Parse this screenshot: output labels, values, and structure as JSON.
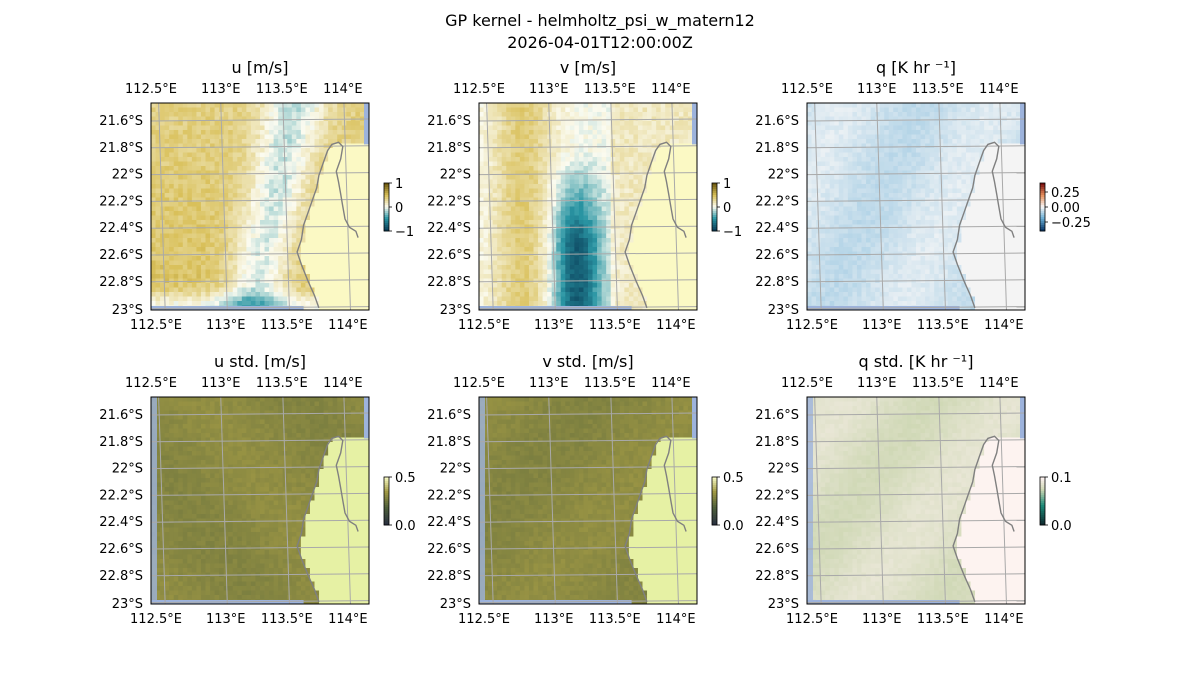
{
  "figure": {
    "title": "GP kernel - helmholtz_psi_w_matern12",
    "timestamp": "2026-04-01T12:00:00Z"
  },
  "chart_data": [
    {
      "type": "heatmap",
      "title": "u [m/s]",
      "variable": "u",
      "x_ticks": [
        "112.5°E",
        "113°E",
        "113.5°E",
        "114°E"
      ],
      "y_ticks": [
        "21.6°S",
        "21.8°S",
        "22°S",
        "22.2°S",
        "22.4°S",
        "22.6°S",
        "22.8°S",
        "23°S"
      ],
      "extent_lon": [
        112.49,
        114.23
      ],
      "extent_lat": [
        -23.0,
        -21.45
      ],
      "colorbar": {
        "ticks": [
          "1",
          "0",
          "−1"
        ],
        "range": [
          -1,
          1
        ],
        "colormap": "diverging teal-white-gold"
      },
      "grid": true
    },
    {
      "type": "heatmap",
      "title": "v [m/s]",
      "variable": "v",
      "x_ticks": [
        "112.5°E",
        "113°E",
        "113.5°E",
        "114°E"
      ],
      "y_ticks": [
        "21.6°S",
        "21.8°S",
        "22°S",
        "22.2°S",
        "22.4°S",
        "22.6°S",
        "22.8°S",
        "23°S"
      ],
      "extent_lon": [
        112.49,
        114.23
      ],
      "extent_lat": [
        -23.0,
        -21.45
      ],
      "colorbar": {
        "ticks": [
          "1",
          "0",
          "−1"
        ],
        "range": [
          -1,
          1
        ],
        "colormap": "diverging teal-white-gold"
      },
      "grid": true
    },
    {
      "type": "heatmap",
      "title": "q [K hr ⁻¹]",
      "variable": "q",
      "x_ticks": [
        "112.5°E",
        "113°E",
        "113.5°E",
        "114°E"
      ],
      "y_ticks": [
        "21.6°S",
        "21.8°S",
        "22°S",
        "22.2°S",
        "22.4°S",
        "22.6°S",
        "22.8°S",
        "23°S"
      ],
      "extent_lon": [
        112.49,
        114.23
      ],
      "extent_lat": [
        -23.0,
        -21.45
      ],
      "colorbar": {
        "ticks": [
          "0.25",
          "0.00",
          "−0.25"
        ],
        "range": [
          -0.4,
          0.4
        ],
        "colormap": "diverging blue-white-red"
      },
      "grid": true
    },
    {
      "type": "heatmap",
      "title": "u std. [m/s]",
      "variable": "u_std",
      "x_ticks": [
        "112.5°E",
        "113°E",
        "113.5°E",
        "114°E"
      ],
      "y_ticks": [
        "21.6°S",
        "21.8°S",
        "22°S",
        "22.2°S",
        "22.4°S",
        "22.6°S",
        "22.8°S",
        "23°S"
      ],
      "extent_lon": [
        112.49,
        114.23
      ],
      "extent_lat": [
        -23.0,
        -21.45
      ],
      "colorbar": {
        "ticks": [
          "0.5",
          "0.0"
        ],
        "range": [
          0,
          0.5
        ],
        "colormap": "sequential yellow-olive"
      },
      "grid": true
    },
    {
      "type": "heatmap",
      "title": "v std. [m/s]",
      "variable": "v_std",
      "x_ticks": [
        "112.5°E",
        "113°E",
        "113.5°E",
        "114°E"
      ],
      "y_ticks": [
        "21.6°S",
        "21.8°S",
        "22°S",
        "22.2°S",
        "22.4°S",
        "22.6°S",
        "22.8°S",
        "23°S"
      ],
      "extent_lon": [
        112.49,
        114.23
      ],
      "extent_lat": [
        -23.0,
        -21.45
      ],
      "colorbar": {
        "ticks": [
          "0.5",
          "0.0"
        ],
        "range": [
          0,
          0.5
        ],
        "colormap": "sequential yellow-olive"
      },
      "grid": true
    },
    {
      "type": "heatmap",
      "title": "q std. [K hr ⁻¹]",
      "variable": "q_std",
      "x_ticks": [
        "112.5°E",
        "113°E",
        "113.5°E",
        "114°E"
      ],
      "y_ticks": [
        "21.6°S",
        "21.8°S",
        "22°S",
        "22.2°S",
        "22.4°S",
        "22.6°S",
        "22.8°S",
        "23°S"
      ],
      "extent_lon": [
        112.49,
        114.23
      ],
      "extent_lat": [
        -23.0,
        -21.45
      ],
      "colorbar": {
        "ticks": [
          "0.1",
          "0.0"
        ],
        "range": [
          0,
          0.12
        ],
        "colormap": "sequential pink-green"
      },
      "grid": true
    }
  ]
}
